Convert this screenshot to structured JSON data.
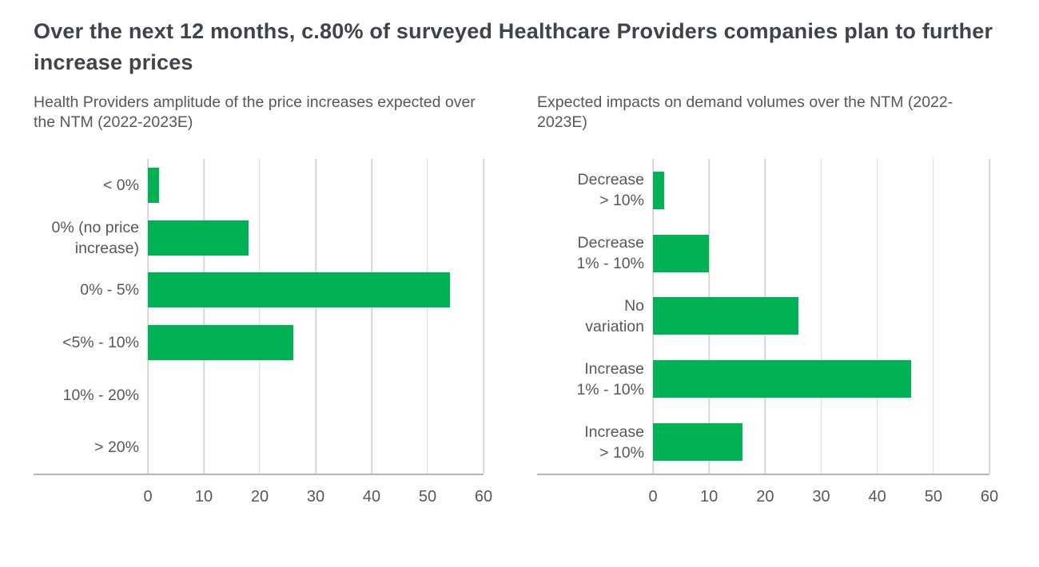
{
  "header": {
    "title": "Over the next 12 months, c.80% of surveyed Healthcare Providers companies plan to further increase prices"
  },
  "chart_data": [
    {
      "type": "bar",
      "orientation": "horizontal",
      "title": "Health Providers amplitude of the price increases expected over the NTM (2022-2023E)",
      "categories": [
        "< 0%",
        "0% (no price\nincrease)",
        "0% - 5%",
        "<5% - 10%",
        "10% - 20%",
        "> 20%"
      ],
      "values": [
        2,
        18,
        54,
        26,
        0,
        0
      ],
      "xlabel": "",
      "ylabel": "",
      "xlim": [
        0,
        60
      ],
      "xticks": [
        0,
        10,
        20,
        30,
        40,
        50,
        60
      ],
      "grid": "vertical",
      "legend": "none",
      "bar_color": "#00B254"
    },
    {
      "type": "bar",
      "orientation": "horizontal",
      "title": "Expected impacts on demand volumes over the NTM (2022-2023E)",
      "categories": [
        "Decrease\n> 10%",
        "Decrease\n1% - 10%",
        "No\nvariation",
        "Increase\n1% - 10%",
        "Increase\n> 10%"
      ],
      "values": [
        2,
        10,
        26,
        46,
        16
      ],
      "xlabel": "",
      "ylabel": "",
      "xlim": [
        0,
        60
      ],
      "xticks": [
        0,
        10,
        20,
        30,
        40,
        50,
        60
      ],
      "grid": "vertical",
      "legend": "none",
      "bar_color": "#00B254"
    }
  ]
}
